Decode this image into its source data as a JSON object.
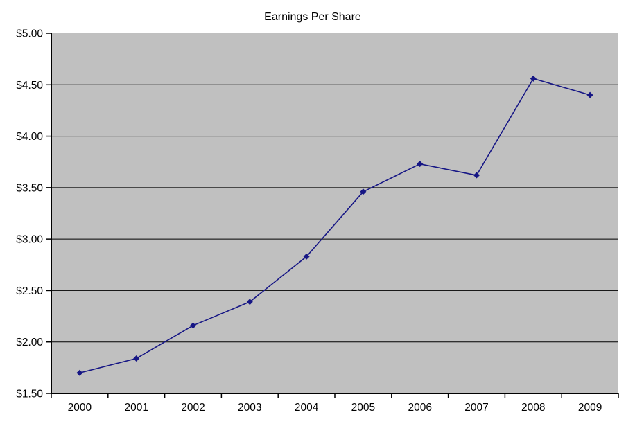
{
  "chart_data": {
    "type": "line",
    "title": "Earnings Per Share",
    "categories": [
      "2000",
      "2001",
      "2002",
      "2003",
      "2004",
      "2005",
      "2006",
      "2007",
      "2008",
      "2009"
    ],
    "values": [
      1.7,
      1.84,
      2.16,
      2.39,
      2.83,
      3.46,
      3.73,
      3.62,
      4.56,
      4.4
    ],
    "xlabel": "",
    "ylabel": "",
    "ylim": [
      1.5,
      5.0
    ],
    "ytick_step": 0.5,
    "ytick_labels": [
      "$1.50",
      "$2.00",
      "$2.50",
      "$3.00",
      "$3.50",
      "$4.00",
      "$4.50",
      "$5.00"
    ],
    "grid": "horizontal",
    "legend": "none",
    "marker": "diamond",
    "colors": {
      "series": "#161685",
      "plot_bg": "#c0c0c0",
      "grid": "#000000",
      "axis": "#000000",
      "text": "#000000",
      "background": "#ffffff"
    }
  }
}
